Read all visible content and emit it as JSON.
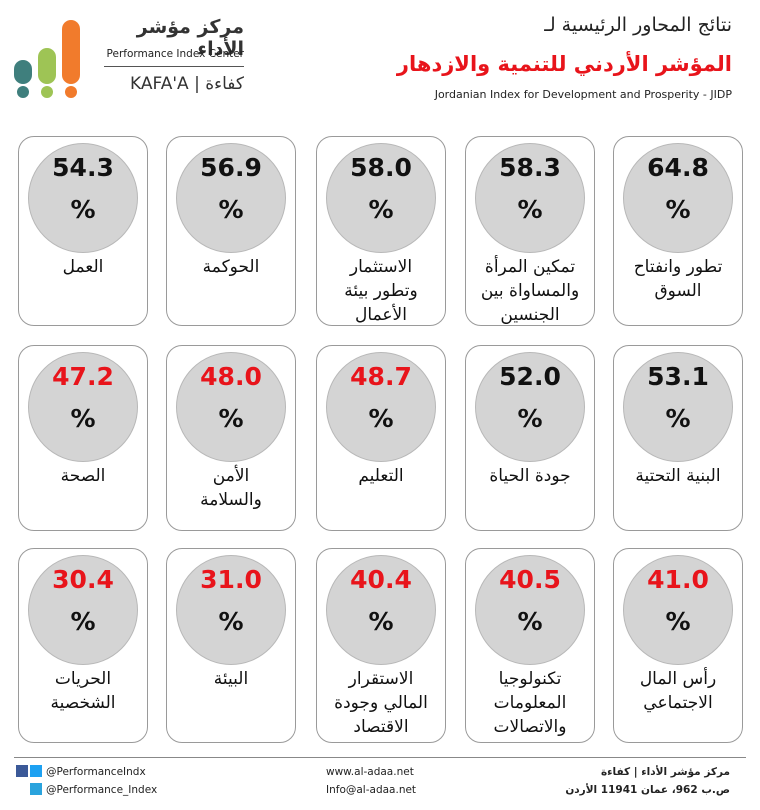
{
  "header": {
    "line1": "نتائج المحاور الرئيسية لـ",
    "line2": "المؤشر الأردني للتنمية والازدهار",
    "line3": "Jordanian Index for Development and Prosperity - JIDP"
  },
  "logo": {
    "arabic": "مركز مؤشر الأداء",
    "english": "Performance Index Center",
    "brand": "KAFA'A | كفاءة"
  },
  "unit": "%",
  "rows": [
    [
      {
        "value": "64.8",
        "label": "تطور وانفتاح\nالسوق",
        "color": "#111111"
      },
      {
        "value": "58.3",
        "label": "تمكين المرأة\nوالمساواة بين\nالجنسين",
        "color": "#111111"
      },
      {
        "value": "58.0",
        "label": "الاستثمار\nوتطور بيئة\nالأعمال",
        "color": "#111111"
      },
      {
        "value": "56.9",
        "label": "الحوكمة",
        "color": "#111111"
      },
      {
        "value": "54.3",
        "label": "العمل",
        "color": "#111111"
      }
    ],
    [
      {
        "value": "53.1",
        "label": "البنية التحتية",
        "color": "#111111"
      },
      {
        "value": "52.0",
        "label": "جودة الحياة",
        "color": "#111111"
      },
      {
        "value": "48.7",
        "label": "التعليم",
        "color": "#e8141b"
      },
      {
        "value": "48.0",
        "label": "الأمن\nوالسلامة",
        "color": "#e8141b"
      },
      {
        "value": "47.2",
        "label": "الصحة",
        "color": "#e8141b"
      }
    ],
    [
      {
        "value": "41.0",
        "label": "رأس المال\nالاجتماعي",
        "color": "#e8141b"
      },
      {
        "value": "40.5",
        "label": "تكنولوجيا\nالمعلومات\nوالاتصالات",
        "color": "#e8141b"
      },
      {
        "value": "40.4",
        "label": "الاستقرار\nالمالي وجودة\nالاقتصاد",
        "color": "#e8141b"
      },
      {
        "value": "31.0",
        "label": "البيئة",
        "color": "#e8141b"
      },
      {
        "value": "30.4",
        "label": "الحريات\nالشخصية",
        "color": "#e8141b"
      }
    ]
  ],
  "footer": {
    "twitter": "@PerformanceIndx",
    "facebook": "@Performance_Index",
    "website": "www.al-adaa.net",
    "email": "Info@al-adaa.net",
    "org": "مركز مؤشر الأداء | كفاءة",
    "address": "ص.ب 962، عمان 11941 الأردن"
  }
}
